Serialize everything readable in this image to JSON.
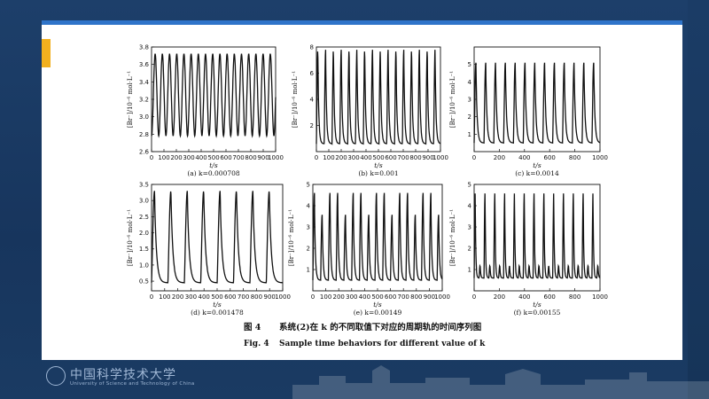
{
  "colors": {
    "background": "#1a3a63",
    "top_bar": "#2f74c9",
    "accent": "#f2b01e"
  },
  "footer": {
    "logo_cn": "中国科学技术大学",
    "logo_en": "University of Science and Technology of China"
  },
  "figure": {
    "caption_cn_prefix": "图 4",
    "caption_cn_body": "系统(2)在 k 的不同取值下对应的周期轨的时间序列图",
    "caption_en_prefix": "Fig. 4",
    "caption_en_body": "Sample time behaviors for different value of k"
  },
  "chart_data": [
    {
      "type": "line",
      "panel_label": "(a) k=0.000708",
      "xlabel": "t/s",
      "ylabel": "[Br⁻]/10⁻⁶ mol·L⁻¹",
      "xlim": [
        0,
        1000
      ],
      "xticks": [
        0,
        100,
        200,
        300,
        400,
        500,
        600,
        700,
        800,
        900,
        1000
      ],
      "ylim": [
        2.6,
        3.8
      ],
      "yticks": [
        "2.6",
        "2.8",
        "3.0",
        "3.2",
        "3.4",
        "3.6",
        "3.8"
      ],
      "period": 58,
      "min": 2.78,
      "max": 3.72,
      "pattern": "single"
    },
    {
      "type": "line",
      "panel_label": "(b) k=0.001",
      "xlabel": "t/s",
      "ylabel": "[Br⁻]/10⁻⁶ mol·L⁻¹",
      "xlim": [
        0,
        1000
      ],
      "xticks": [
        0,
        100,
        200,
        300,
        400,
        500,
        600,
        700,
        800,
        900,
        1000
      ],
      "ylim": [
        0,
        8
      ],
      "yticks": [
        "2",
        "4",
        "6",
        "8"
      ],
      "period": 63,
      "min": 0.6,
      "max": 7.8,
      "pattern": "single"
    },
    {
      "type": "line",
      "panel_label": "(c) k=0.0014",
      "xlabel": "t/s",
      "ylabel": "[Br⁻]/10⁻⁶ mol·L⁻¹",
      "xlim": [
        0,
        1000
      ],
      "xticks": [
        0,
        200,
        400,
        600,
        800,
        1000
      ],
      "ylim": [
        0,
        6
      ],
      "yticks": [
        "1",
        "2",
        "3",
        "4",
        "5"
      ],
      "period": 78,
      "min": 0.5,
      "max": 5.1,
      "pattern": "single"
    },
    {
      "type": "line",
      "panel_label": "(d) k=0.001478",
      "xlabel": "t/s",
      "ylabel": "[Br⁻]/10⁻⁶ mol·L⁻¹",
      "xlim": [
        0,
        1000
      ],
      "xticks": [
        0,
        100,
        200,
        300,
        400,
        500,
        600,
        700,
        800,
        900,
        1000
      ],
      "ylim": [
        0.2,
        3.5
      ],
      "yticks": [
        "0.5",
        "1.0",
        "1.5",
        "2.0",
        "2.5",
        "3.0",
        "3.5"
      ],
      "period": 125,
      "min": 0.45,
      "max": 3.3,
      "pattern": "single"
    },
    {
      "type": "line",
      "panel_label": "(e) k=0.00149",
      "xlabel": "t/s",
      "ylabel": "[Br⁻]/10⁻⁶ mol·L⁻¹",
      "xlim": [
        0,
        1000
      ],
      "xticks": [
        0,
        100,
        200,
        300,
        400,
        500,
        600,
        700,
        800,
        900,
        1000
      ],
      "ylim": [
        0,
        5
      ],
      "yticks": [
        "1",
        "2",
        "3",
        "4",
        "5"
      ],
      "period": 60,
      "min": 0.5,
      "max": 4.6,
      "pattern": "double"
    },
    {
      "type": "line",
      "panel_label": "(f) k=0.00155",
      "xlabel": "t/s",
      "ylabel": "[Br⁻]/10⁻⁶ mol·L⁻¹",
      "xlim": [
        0,
        1000
      ],
      "xticks": [
        0,
        200,
        400,
        600,
        800,
        1000
      ],
      "ylim": [
        0,
        5
      ],
      "yticks": [
        "1",
        "2",
        "3",
        "4",
        "5"
      ],
      "period": 78,
      "min": 0.6,
      "max": 4.6,
      "pattern": "mixed"
    }
  ]
}
